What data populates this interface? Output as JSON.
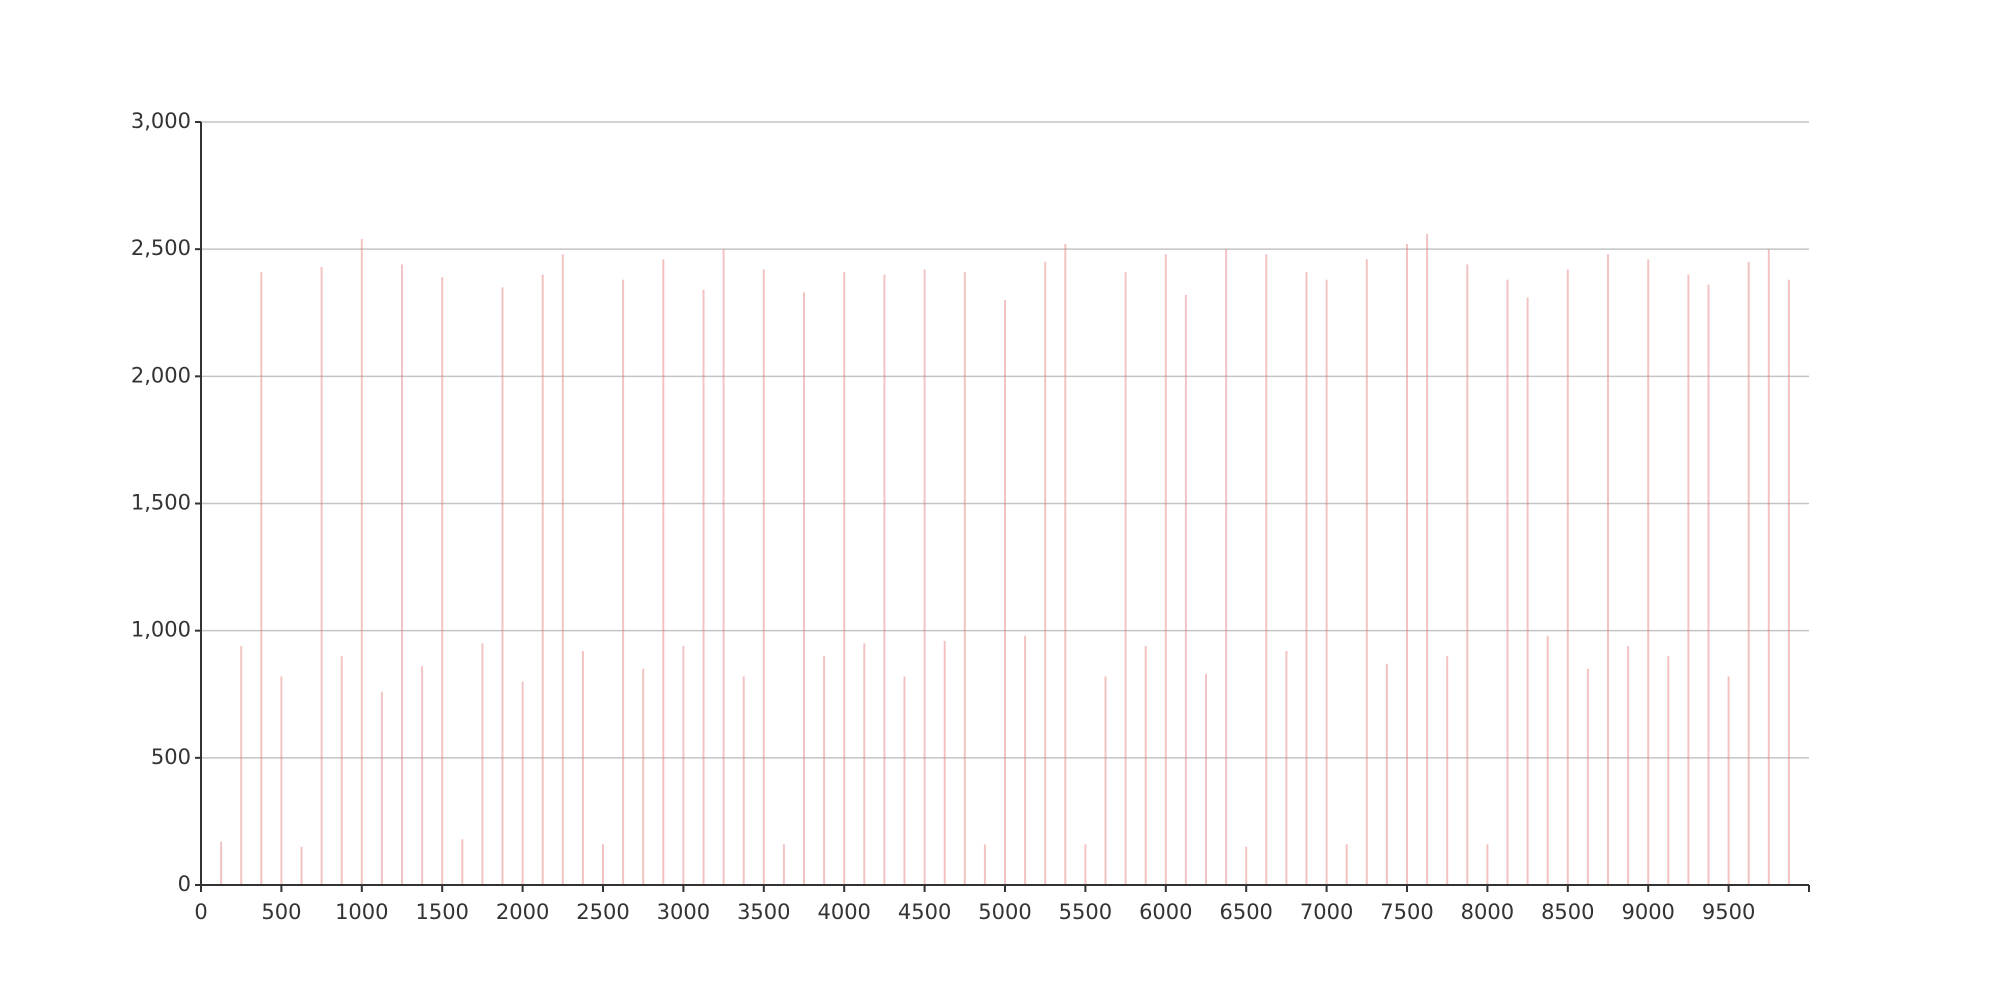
{
  "chart_data": {
    "type": "bar",
    "color": "#e57a7a",
    "grid": true,
    "xlim": [
      0,
      10000
    ],
    "xticks": [
      0,
      500,
      1000,
      1500,
      2000,
      2500,
      3000,
      3500,
      4000,
      4500,
      5000,
      5500,
      6000,
      6500,
      7000,
      7500,
      8000,
      8500,
      9000,
      9500
    ],
    "ylim": [
      0,
      3000
    ],
    "yticks": [
      0,
      500,
      {
        "value": 1000,
        "label": "1,000"
      },
      {
        "value": 1500,
        "label": "1,500"
      },
      {
        "value": 2000,
        "label": "2,000"
      },
      {
        "value": 2500,
        "label": "2,500"
      },
      {
        "value": 3000,
        "label": "3,000"
      }
    ],
    "x": [
      0,
      125,
      250,
      375,
      500,
      625,
      750,
      875,
      1000,
      1125,
      1250,
      1375,
      1500,
      1625,
      1750,
      1875,
      2000,
      2125,
      2250,
      2375,
      2500,
      2625,
      2750,
      2875,
      3000,
      3125,
      3250,
      3375,
      3500,
      3625,
      3750,
      3875,
      4000,
      4125,
      4250,
      4375,
      4500,
      4625,
      4750,
      4875,
      5000,
      5125,
      5250,
      5375,
      5500,
      5625,
      5750,
      5875,
      6000,
      6125,
      6250,
      6375,
      6500,
      6625,
      6750,
      6875,
      7000,
      7125,
      7250,
      7375,
      7500,
      7625,
      7750,
      7875,
      8000,
      8125,
      8250,
      8375,
      8500,
      8625,
      8750,
      8875,
      9000,
      9125,
      9250,
      9375,
      9500,
      9625,
      9750,
      9875
    ],
    "values": [
      2460,
      170,
      940,
      2410,
      820,
      150,
      2430,
      900,
      2540,
      760,
      2440,
      860,
      2390,
      180,
      950,
      2350,
      800,
      2400,
      2480,
      920,
      160,
      2380,
      850,
      2460,
      940,
      2340,
      2500,
      820,
      2420,
      160,
      2330,
      900,
      2410,
      950,
      2400,
      820,
      2420,
      960,
      2410,
      160,
      2300,
      980,
      2450,
      2520,
      160,
      820,
      2410,
      940,
      2480,
      2320,
      830,
      2500,
      150,
      2480,
      920,
      2410,
      2380,
      160,
      2460,
      870,
      2520,
      2560,
      900,
      2440,
      160,
      2380,
      2310,
      980,
      2420,
      850,
      2480,
      940,
      2460,
      900,
      2400,
      2360,
      820,
      2450,
      2500,
      2380
    ]
  }
}
